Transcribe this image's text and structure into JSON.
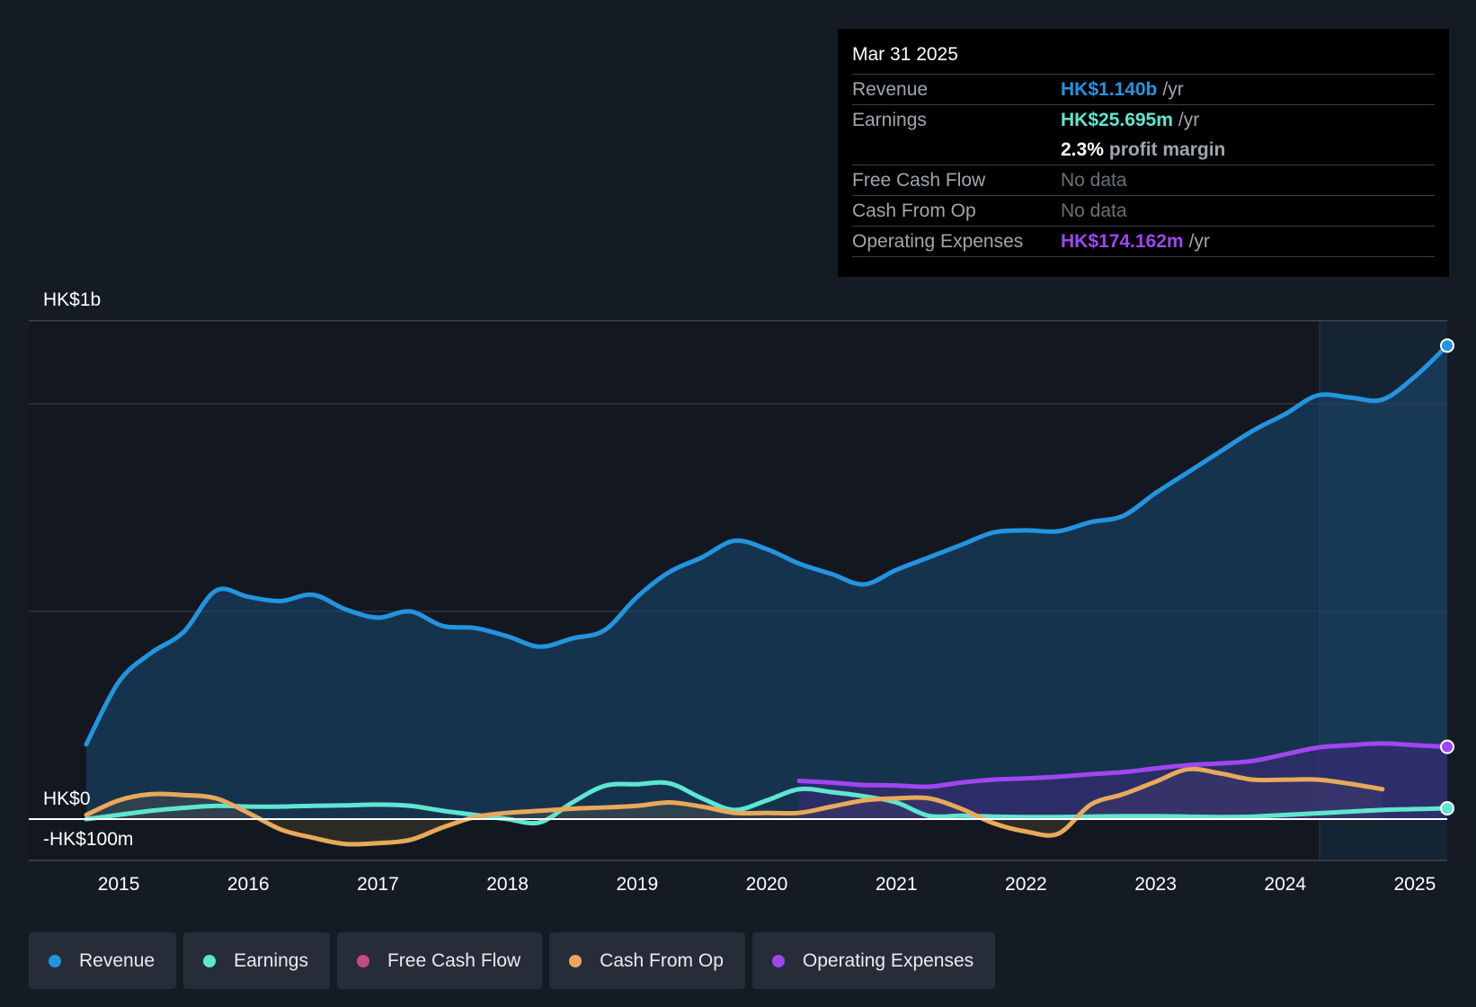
{
  "tooltip": {
    "date": "Mar 31 2025",
    "rows": {
      "revenue": {
        "label": "Revenue",
        "value": "HK$1.140b",
        "unit": "/yr"
      },
      "earnings": {
        "label": "Earnings",
        "value": "HK$25.695m",
        "unit": "/yr"
      },
      "margin": {
        "value": "2.3%",
        "unit": "profit margin"
      },
      "fcf": {
        "label": "Free Cash Flow",
        "value": "No data"
      },
      "cfo": {
        "label": "Cash From Op",
        "value": "No data"
      },
      "opex": {
        "label": "Operating Expenses",
        "value": "HK$174.162m",
        "unit": "/yr"
      }
    }
  },
  "legend": [
    {
      "label": "Revenue",
      "color": "#2394df"
    },
    {
      "label": "Earnings",
      "color": "#5ee6d0"
    },
    {
      "label": "Free Cash Flow",
      "color": "#c54a87"
    },
    {
      "label": "Cash From Op",
      "color": "#e8a95a"
    },
    {
      "label": "Operating Expenses",
      "color": "#a046f0"
    }
  ],
  "chart_data": {
    "type": "line",
    "y_labels": [
      "HK$1b",
      "HK$0",
      "-HK$100m"
    ],
    "ylim": [
      -100,
      1200
    ],
    "xlim": [
      2014.75,
      2025.25
    ],
    "xticks": [
      "2015",
      "2016",
      "2017",
      "2018",
      "2019",
      "2020",
      "2021",
      "2022",
      "2023",
      "2024",
      "2025"
    ],
    "series": [
      {
        "name": "Revenue",
        "color": "#2394df",
        "area": true,
        "end_marker": true,
        "x": [
          2014.75,
          2015.0,
          2015.25,
          2015.5,
          2015.75,
          2016.0,
          2016.25,
          2016.5,
          2016.75,
          2017.0,
          2017.25,
          2017.5,
          2017.75,
          2018.0,
          2018.25,
          2018.5,
          2018.75,
          2019.0,
          2019.25,
          2019.5,
          2019.75,
          2020.0,
          2020.25,
          2020.5,
          2020.75,
          2021.0,
          2021.25,
          2021.5,
          2021.75,
          2022.0,
          2022.25,
          2022.5,
          2022.75,
          2023.0,
          2023.25,
          2023.5,
          2023.75,
          2024.0,
          2024.25,
          2024.5,
          2024.75,
          2025.0,
          2025.25
        ],
        "y": [
          180,
          330,
          400,
          450,
          550,
          535,
          525,
          540,
          505,
          485,
          500,
          465,
          460,
          440,
          415,
          435,
          455,
          535,
          595,
          630,
          670,
          650,
          615,
          590,
          565,
          600,
          630,
          660,
          690,
          695,
          693,
          715,
          730,
          785,
          835,
          885,
          935,
          975,
          1020,
          1015,
          1010,
          1065,
          1140
        ]
      },
      {
        "name": "Earnings",
        "color": "#5ee6d0",
        "end_marker": true,
        "x": [
          2014.75,
          2015.0,
          2015.25,
          2015.5,
          2015.75,
          2016.0,
          2016.25,
          2016.5,
          2016.75,
          2017.0,
          2017.25,
          2017.5,
          2017.75,
          2018.0,
          2018.25,
          2018.5,
          2018.75,
          2019.0,
          2019.25,
          2019.5,
          2019.75,
          2020.0,
          2020.25,
          2020.5,
          2020.75,
          2021.0,
          2021.25,
          2021.5,
          2021.75,
          2022.0,
          2022.25,
          2022.5,
          2022.75,
          2023.0,
          2023.25,
          2023.5,
          2023.75,
          2024.0,
          2024.25,
          2024.5,
          2024.75,
          2025.0,
          2025.25
        ],
        "y": [
          0,
          10,
          20,
          27,
          32,
          30,
          30,
          32,
          33,
          35,
          32,
          20,
          10,
          0,
          -8,
          40,
          80,
          84,
          86,
          50,
          22,
          45,
          72,
          65,
          55,
          40,
          8,
          8,
          6,
          5,
          5,
          6,
          7,
          7,
          6,
          5,
          6,
          10,
          14,
          18,
          22,
          24,
          26
        ]
      },
      {
        "name": "Free Cash Flow",
        "color": "#c54a87",
        "x": [],
        "y": []
      },
      {
        "name": "Cash From Op",
        "color": "#e8a95a",
        "x": [
          2014.75,
          2015.0,
          2015.25,
          2015.5,
          2015.75,
          2016.0,
          2016.25,
          2016.5,
          2016.75,
          2017.0,
          2017.25,
          2017.5,
          2017.75,
          2018.0,
          2018.25,
          2018.5,
          2018.75,
          2019.0,
          2019.25,
          2019.5,
          2019.75,
          2020.0,
          2020.25,
          2020.5,
          2020.75,
          2021.0,
          2021.25,
          2021.5,
          2021.75,
          2022.0,
          2022.25,
          2022.5,
          2022.75,
          2023.0,
          2023.25,
          2023.5,
          2023.75,
          2024.0,
          2024.25,
          2024.5,
          2024.75
        ],
        "y": [
          10,
          45,
          60,
          58,
          50,
          15,
          -25,
          -45,
          -60,
          -58,
          -50,
          -20,
          5,
          15,
          20,
          25,
          28,
          32,
          40,
          30,
          15,
          15,
          15,
          30,
          45,
          50,
          50,
          25,
          -10,
          -30,
          -35,
          35,
          60,
          90,
          120,
          110,
          95,
          95,
          95,
          85,
          72
        ]
      },
      {
        "name": "Operating Expenses",
        "color": "#a046f0",
        "area": true,
        "end_marker": true,
        "x": [
          2020.25,
          2020.5,
          2020.75,
          2021.0,
          2021.25,
          2021.5,
          2021.75,
          2022.0,
          2022.25,
          2022.5,
          2022.75,
          2023.0,
          2023.25,
          2023.5,
          2023.75,
          2024.0,
          2024.25,
          2024.5,
          2024.75,
          2025.0,
          2025.25
        ],
        "y": [
          92,
          88,
          82,
          81,
          78,
          88,
          95,
          98,
          102,
          108,
          113,
          122,
          130,
          134,
          140,
          156,
          172,
          178,
          182,
          178,
          174
        ]
      }
    ]
  }
}
